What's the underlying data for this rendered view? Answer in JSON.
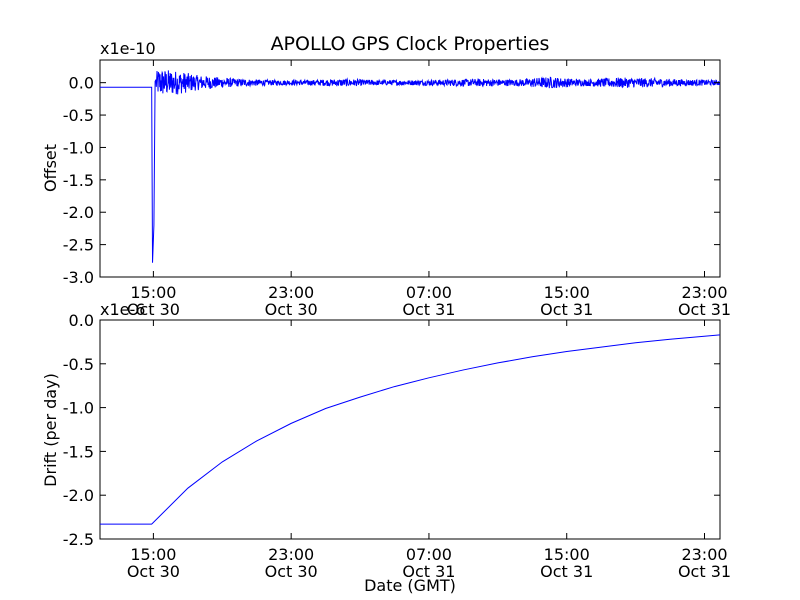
{
  "chart_data": {
    "title": "APOLLO GPS Clock Properties",
    "xlabel": "Date (GMT)",
    "x_ticks": [
      {
        "time": "15:00",
        "date": "Oct 30"
      },
      {
        "time": "23:00",
        "date": "Oct 30"
      },
      {
        "time": "07:00",
        "date": "Oct 31"
      },
      {
        "time": "15:00",
        "date": "Oct 31"
      },
      {
        "time": "23:00",
        "date": "Oct 31"
      }
    ],
    "xlim_hours_from_oct30_0000": [
      11.9,
      47.9
    ],
    "panels": [
      {
        "type": "line",
        "ylabel": "Offset",
        "multiplier_label": "x1e-10",
        "ylim": [
          -3.0,
          0.35
        ],
        "y_ticks": [
          "0.0",
          "-0.5",
          "-1.0",
          "-1.5",
          "-2.0",
          "-2.5",
          "-3.0"
        ],
        "y_tick_values": [
          0.0,
          -0.5,
          -1.0,
          -1.5,
          -2.0,
          -2.5,
          -3.0
        ],
        "grid": false,
        "color": "#0000ff",
        "series": {
          "initial_level": -0.07,
          "spike_hours": 14.95,
          "spike_min": -2.78,
          "noise_envelope": [
            [
              14.9,
              0.05
            ],
            [
              15.3,
              0.22
            ],
            [
              16.5,
              0.18
            ],
            [
              17.5,
              0.12
            ],
            [
              18.5,
              0.09
            ],
            [
              20.0,
              0.06
            ],
            [
              22.0,
              0.04
            ],
            [
              24.0,
              0.04
            ],
            [
              26.0,
              0.06
            ],
            [
              28.0,
              0.04
            ],
            [
              30.0,
              0.04
            ],
            [
              32.0,
              0.05
            ],
            [
              34.0,
              0.06
            ],
            [
              36.0,
              0.05
            ],
            [
              38.0,
              0.09
            ],
            [
              40.0,
              0.05
            ],
            [
              42.0,
              0.08
            ],
            [
              44.0,
              0.07
            ],
            [
              46.0,
              0.05
            ],
            [
              47.9,
              0.04
            ]
          ]
        }
      },
      {
        "type": "line",
        "ylabel": "Drift (per day)",
        "multiplier_label": "x1e-6",
        "ylim": [
          -2.5,
          0.0
        ],
        "y_ticks": [
          "0.0",
          "-0.5",
          "-1.0",
          "-1.5",
          "-2.0",
          "-2.5"
        ],
        "y_tick_values": [
          0.0,
          -0.5,
          -1.0,
          -1.5,
          -2.0,
          -2.5
        ],
        "grid": false,
        "color": "#0000ff",
        "series": {
          "x_hours": [
            11.9,
            14.9,
            17.0,
            19.0,
            21.0,
            23.0,
            25.0,
            27.0,
            29.0,
            31.0,
            33.0,
            35.0,
            37.0,
            39.0,
            41.0,
            43.0,
            45.0,
            47.9
          ],
          "y": [
            -2.33,
            -2.33,
            -1.92,
            -1.62,
            -1.38,
            -1.18,
            -1.01,
            -0.88,
            -0.76,
            -0.66,
            -0.57,
            -0.49,
            -0.42,
            -0.36,
            -0.31,
            -0.26,
            -0.22,
            -0.17
          ]
        }
      }
    ]
  }
}
